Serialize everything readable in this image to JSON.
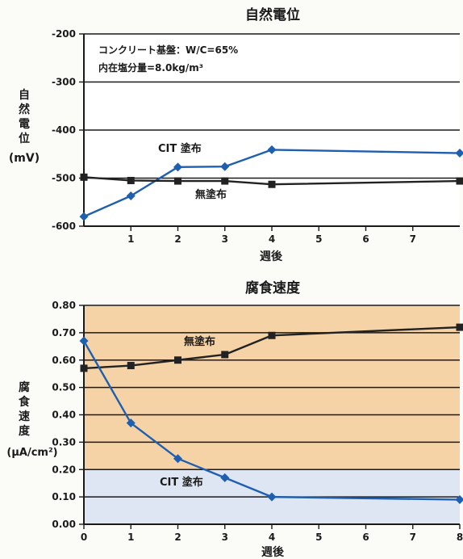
{
  "chart_data": [
    {
      "type": "line",
      "title": "自然電位",
      "xlabel": "週後",
      "ylabel_lines": [
        "自",
        "然",
        "電",
        "位"
      ],
      "ylabel_unit": "(mV)",
      "note_line1": "コンクリート基盤：W/C=65%",
      "note_line2": "内在塩分量=8.0kg/m³",
      "xlim": [
        0,
        8
      ],
      "ylim": [
        -600,
        -200
      ],
      "x_ticks": [
        1,
        2,
        3,
        4,
        5,
        6,
        7
      ],
      "y_ticks": [
        -200,
        -300,
        -400,
        -500,
        -600
      ],
      "series": [
        {
          "name": "CIT 塗布",
          "color": "#1f5fb0",
          "marker": "diamond",
          "x": [
            0,
            1,
            2,
            3,
            4,
            8
          ],
          "y": [
            -580,
            -537,
            -477,
            -476,
            -441,
            -448
          ]
        },
        {
          "name": "無塗布",
          "color": "#222222",
          "marker": "square",
          "x": [
            0,
            1,
            2,
            3,
            4,
            8
          ],
          "y": [
            -498,
            -505,
            -506,
            -506,
            -513,
            -506
          ]
        }
      ]
    },
    {
      "type": "line",
      "title": "腐食速度",
      "xlabel": "週後",
      "ylabel_lines": [
        "腐",
        "食",
        "速",
        "度"
      ],
      "ylabel_unit": "(μA/cm²)",
      "xlim": [
        0,
        8
      ],
      "ylim": [
        0,
        0.8
      ],
      "x_ticks": [
        0,
        1,
        2,
        3,
        4,
        5,
        6,
        7,
        8
      ],
      "y_ticks": [
        "0.00",
        "0.10",
        "0.20",
        "0.30",
        "0.40",
        "0.50",
        "0.60",
        "0.70",
        "0.80"
      ],
      "bands": [
        {
          "from": 0.2,
          "to": 0.8,
          "color": "#f6d3a6"
        },
        {
          "from": 0.0,
          "to": 0.2,
          "color": "#dde6f2"
        }
      ],
      "series": [
        {
          "name": "無塗布",
          "color": "#222222",
          "marker": "square",
          "x": [
            0,
            1,
            2,
            3,
            4,
            8
          ],
          "y": [
            0.57,
            0.58,
            0.6,
            0.62,
            0.69,
            0.72
          ]
        },
        {
          "name": "CIT 塗布",
          "color": "#1f5fb0",
          "marker": "diamond",
          "x": [
            0,
            1,
            2,
            3,
            4,
            8
          ],
          "y": [
            0.67,
            0.37,
            0.24,
            0.17,
            0.1,
            0.09
          ]
        }
      ]
    }
  ]
}
